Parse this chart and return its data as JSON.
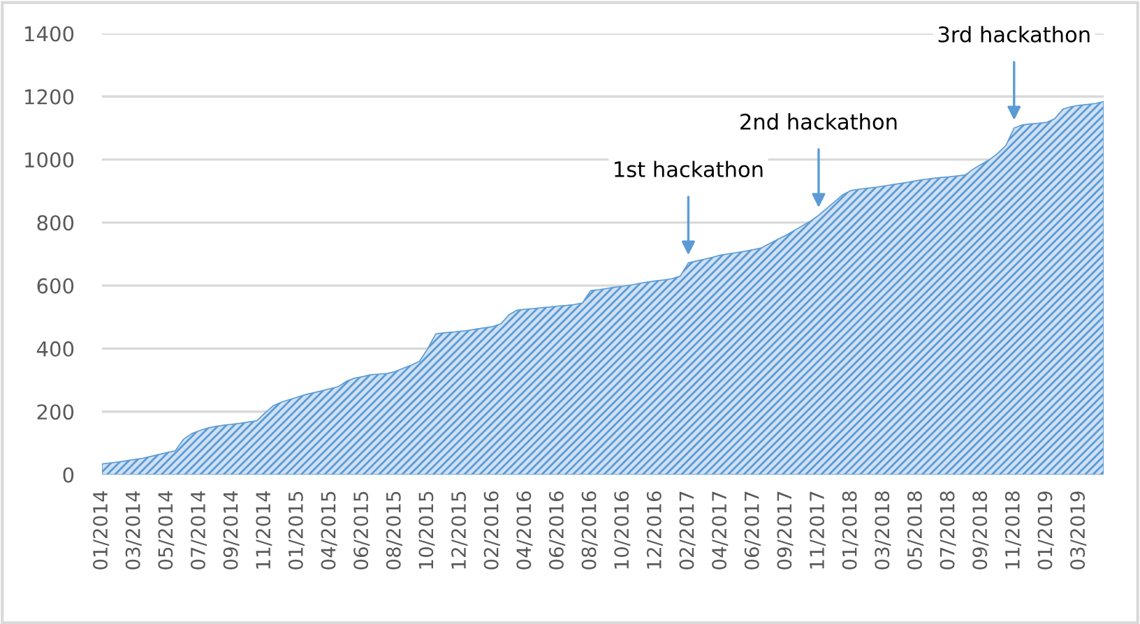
{
  "chart_data": {
    "type": "area",
    "color": "#5b9bd5",
    "categories": [
      "01/2014",
      null,
      null,
      null,
      "03/2014",
      null,
      null,
      null,
      "05/2014",
      null,
      null,
      null,
      "07/2014",
      null,
      null,
      null,
      "09/2014",
      null,
      null,
      null,
      "11/2014",
      null,
      null,
      null,
      "01/2015",
      null,
      null,
      null,
      "04/2015",
      null,
      null,
      null,
      "06/2015",
      null,
      null,
      null,
      "08/2015",
      null,
      null,
      null,
      "10/2015",
      null,
      null,
      null,
      "12/2015",
      null,
      null,
      null,
      "02/2016",
      null,
      null,
      null,
      "04/2016",
      null,
      null,
      null,
      "06/2016",
      null,
      null,
      null,
      "08/2016",
      null,
      null,
      null,
      "10/2016",
      null,
      null,
      null,
      "12/2016",
      null,
      null,
      null,
      "02/2017",
      null,
      null,
      null,
      "04/2017",
      null,
      null,
      null,
      "06/2017",
      null,
      null,
      null,
      "09/2017",
      null,
      null,
      null,
      "11/2017",
      null,
      null,
      null,
      "01/2018",
      null,
      null,
      null,
      "03/2018",
      null,
      null,
      null,
      "05/2018",
      null,
      null,
      null,
      "07/2018",
      null,
      null,
      null,
      "09/2018",
      null,
      null,
      null,
      "11/2018",
      null,
      null,
      null,
      "01/2019",
      null,
      null,
      null,
      "03/2019",
      null,
      null,
      null
    ],
    "values": [
      34,
      37,
      40,
      44,
      48,
      52,
      58,
      64,
      70,
      76,
      112,
      130,
      140,
      148,
      153,
      157,
      160,
      163,
      167,
      171,
      195,
      218,
      230,
      238,
      246,
      254,
      260,
      266,
      273,
      279,
      296,
      306,
      311,
      317,
      319,
      321,
      327,
      338,
      348,
      360,
      400,
      447,
      450,
      452,
      455,
      458,
      462,
      466,
      470,
      479,
      508,
      522,
      525,
      527,
      530,
      532,
      535,
      537,
      540,
      545,
      584,
      587,
      591,
      595,
      598,
      602,
      607,
      611,
      615,
      618,
      622,
      630,
      672,
      678,
      684,
      690,
      697,
      701,
      705,
      709,
      714,
      720,
      734,
      747,
      760,
      775,
      790,
      805,
      823,
      845,
      867,
      889,
      902,
      906,
      909,
      912,
      916,
      920,
      924,
      928,
      933,
      937,
      940,
      943,
      945,
      948,
      951,
      970,
      985,
      1000,
      1020,
      1045,
      1100,
      1110,
      1113,
      1115,
      1118,
      1130,
      1160,
      1168,
      1172,
      1175,
      1178,
      1184
    ],
    "ylim": [
      0,
      1400
    ],
    "yticks": [
      0,
      200,
      400,
      600,
      800,
      1000,
      1200,
      1400
    ],
    "grid": "y",
    "annotations": [
      {
        "text": "1st hackathon",
        "x": "02/2017",
        "y": 672
      },
      {
        "text": "2nd hackathon",
        "x": "11/2017",
        "y": 823
      },
      {
        "text": "3rd hackathon",
        "x": "11/2018",
        "y": 1100
      }
    ]
  }
}
